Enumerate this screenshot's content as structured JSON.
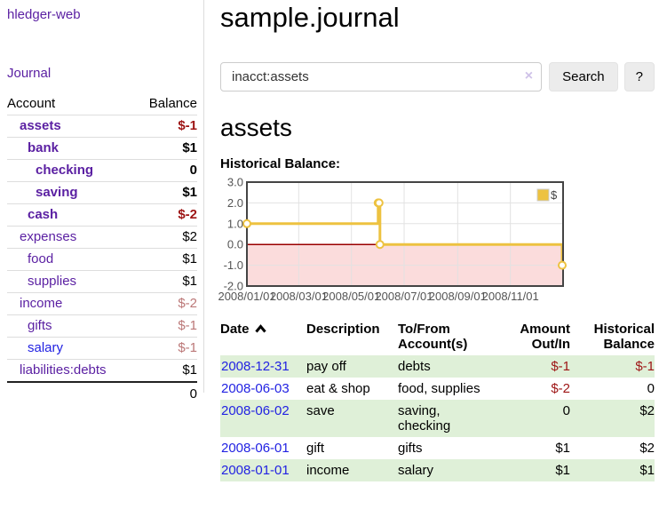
{
  "app": {
    "brand": "hledger-web",
    "nav_journal": "Journal"
  },
  "colors": {
    "link_purple": "#5a1fa2",
    "link_blue": "#2222e2",
    "negative_strong": "#9d1414",
    "negative_soft": "#bb7777",
    "row_green": "#dff0d8",
    "chart_series": "#edc240",
    "chart_negative_region": "#fbdcdc",
    "chart_zero_line": "#990000",
    "chart_grid": "#e2e2e2",
    "chart_border": "#444444"
  },
  "sidebar": {
    "account_header": "Account",
    "balance_header": "Balance",
    "accounts": [
      {
        "name": "assets",
        "depth": 1,
        "balance": "$-1",
        "bold": true,
        "negative": "strong"
      },
      {
        "name": "bank",
        "depth": 2,
        "balance": "$1",
        "bold": true,
        "negative": null
      },
      {
        "name": "checking",
        "depth": 3,
        "balance": "0",
        "bold": true,
        "negative": null
      },
      {
        "name": "saving",
        "depth": 3,
        "balance": "$1",
        "bold": true,
        "negative": null
      },
      {
        "name": "cash",
        "depth": 2,
        "balance": "$-2",
        "bold": true,
        "negative": "strong"
      },
      {
        "name": "expenses",
        "depth": 1,
        "balance": "$2",
        "bold": false,
        "negative": null
      },
      {
        "name": "food",
        "depth": 2,
        "balance": "$1",
        "bold": false,
        "negative": null
      },
      {
        "name": "supplies",
        "depth": 2,
        "balance": "$1",
        "bold": false,
        "negative": null
      },
      {
        "name": "income",
        "depth": 1,
        "balance": "$-2",
        "bold": false,
        "negative": "soft"
      },
      {
        "name": "gifts",
        "depth": 2,
        "balance": "$-1",
        "bold": false,
        "negative": "soft"
      },
      {
        "name": "salary",
        "depth": 2,
        "balance": "$-1",
        "bold": false,
        "negative": "soft",
        "link_color": "blue"
      },
      {
        "name": "liabilities:debts",
        "depth": 1,
        "balance": "$1",
        "bold": false,
        "negative": null
      }
    ],
    "total": "0"
  },
  "header": {
    "title": "sample.journal"
  },
  "search": {
    "query": "inacct:assets",
    "clear_icon": "×",
    "button": "Search",
    "help_button": "?"
  },
  "account_page": {
    "heading": "assets",
    "chart_label": "Historical Balance:"
  },
  "chart_data": {
    "type": "line",
    "step": true,
    "title": "Historical Balance",
    "series": [
      {
        "name": "$",
        "color": "#edc240",
        "points": [
          [
            "2008-01-01",
            1
          ],
          [
            "2008-06-01",
            2
          ],
          [
            "2008-06-02",
            2
          ],
          [
            "2008-06-03",
            0
          ],
          [
            "2008-12-31",
            -1
          ]
        ]
      }
    ],
    "xlim": [
      "2008-01-01",
      "2009-01-01"
    ],
    "ylim": [
      -2,
      3
    ],
    "yticks": [
      3,
      2,
      1,
      0,
      -1,
      -2
    ],
    "ytick_labels": [
      "3.0",
      "2.0",
      "1.0",
      "0.0",
      "-1.0",
      "-2.0"
    ],
    "xticks": [
      "2008-01-01",
      "2008-03-01",
      "2008-05-01",
      "2008-07-01",
      "2008-09-01",
      "2008-11-01"
    ],
    "xtick_labels": [
      "2008/01/01",
      "2008/03/01",
      "2008/05/01",
      "2008/07/01",
      "2008/09/01",
      "2008/11/01"
    ],
    "legend_position": "top-right",
    "grid": true,
    "negative_region": true
  },
  "register": {
    "columns": [
      {
        "id": "date",
        "label_lines": [
          "Date"
        ],
        "sorted": true
      },
      {
        "id": "description",
        "label_lines": [
          "Description"
        ]
      },
      {
        "id": "accounts",
        "label_lines": [
          "To/From",
          "Account(s)"
        ]
      },
      {
        "id": "amount",
        "label_lines": [
          "Amount",
          "Out/In"
        ]
      },
      {
        "id": "balance",
        "label_lines": [
          "Historical",
          "Balance"
        ]
      }
    ],
    "rows": [
      {
        "date": "2008-12-31",
        "description": "pay off",
        "accounts": "debts",
        "amount": "$-1",
        "amount_negative": true,
        "balance": "$-1",
        "balance_negative": true
      },
      {
        "date": "2008-06-03",
        "description": "eat & shop",
        "accounts": "food, supplies",
        "amount": "$-2",
        "amount_negative": true,
        "balance": "0",
        "balance_negative": false
      },
      {
        "date": "2008-06-02",
        "description": "save",
        "accounts": "saving, checking",
        "amount": "0",
        "amount_negative": false,
        "balance": "$2",
        "balance_negative": false
      },
      {
        "date": "2008-06-01",
        "description": "gift",
        "accounts": "gifts",
        "amount": "$1",
        "amount_negative": false,
        "balance": "$2",
        "balance_negative": false
      },
      {
        "date": "2008-01-01",
        "description": "income",
        "accounts": "salary",
        "amount": "$1",
        "amount_negative": false,
        "balance": "$1",
        "balance_negative": false
      }
    ]
  }
}
